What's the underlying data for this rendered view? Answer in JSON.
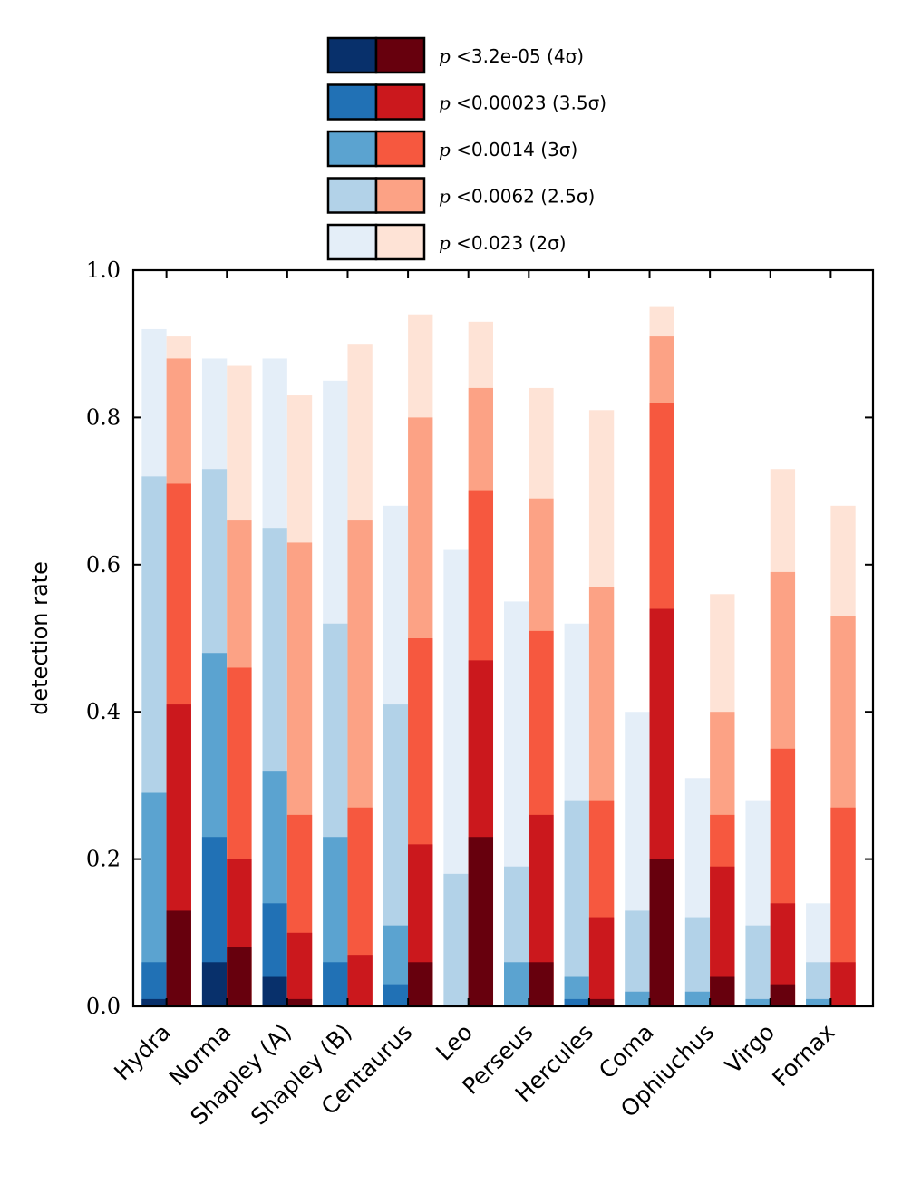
{
  "chart_data": {
    "type": "bar",
    "ylabel": "detection rate",
    "ylim": [
      0,
      1
    ],
    "yticks": [
      "0.0",
      "0.2",
      "0.4",
      "0.6",
      "0.8",
      "1.0"
    ],
    "categories": [
      "Hydra",
      "Norma",
      "Shapley (A)",
      "Shapley (B)",
      "Centaurus",
      "Leo",
      "Perseus",
      "Hercules",
      "Coma",
      "Ophiuchus",
      "Virgo",
      "Fornax"
    ],
    "legend": [
      {
        "p": "p",
        "label": "<3.2e-05 (4σ)",
        "blue": "#08306b",
        "red": "#67000d"
      },
      {
        "p": "p",
        "label": "<0.00023 (3.5σ)",
        "blue": "#2171b5",
        "red": "#cb181d"
      },
      {
        "p": "p",
        "label": "<0.0014 (3σ)",
        "blue": "#5ba3d0",
        "red": "#f6583f"
      },
      {
        "p": "p",
        "label": "<0.0062 (2.5σ)",
        "blue": "#b2d2e8",
        "red": "#fca285"
      },
      {
        "p": "p",
        "label": "<0.023 (2σ)",
        "blue": "#e4eef8",
        "red": "#fee3d6"
      }
    ],
    "series": [
      {
        "group": "blue",
        "levels": [
          "4σ",
          "3.5σ",
          "3σ",
          "2.5σ",
          "2σ"
        ],
        "values": [
          [
            0.01,
            0.06,
            0.29,
            0.72,
            0.92
          ],
          [
            0.06,
            0.23,
            0.48,
            0.73,
            0.88
          ],
          [
            0.04,
            0.14,
            0.32,
            0.65,
            0.88
          ],
          [
            0.0,
            0.06,
            0.23,
            0.52,
            0.85
          ],
          [
            0.0,
            0.03,
            0.11,
            0.41,
            0.68
          ],
          [
            0.0,
            0.0,
            0.0,
            0.18,
            0.62
          ],
          [
            0.0,
            0.0,
            0.06,
            0.19,
            0.55
          ],
          [
            0.0,
            0.01,
            0.04,
            0.28,
            0.52
          ],
          [
            0.0,
            0.0,
            0.02,
            0.13,
            0.4
          ],
          [
            0.0,
            0.0,
            0.02,
            0.12,
            0.31
          ],
          [
            0.0,
            0.0,
            0.01,
            0.11,
            0.28
          ],
          [
            0.0,
            0.0,
            0.01,
            0.06,
            0.14
          ]
        ]
      },
      {
        "group": "red",
        "levels": [
          "4σ",
          "3.5σ",
          "3σ",
          "2.5σ",
          "2σ"
        ],
        "values": [
          [
            0.13,
            0.41,
            0.71,
            0.88,
            0.91
          ],
          [
            0.08,
            0.2,
            0.46,
            0.66,
            0.87
          ],
          [
            0.01,
            0.1,
            0.26,
            0.63,
            0.83
          ],
          [
            0.0,
            0.07,
            0.27,
            0.66,
            0.9
          ],
          [
            0.06,
            0.22,
            0.5,
            0.8,
            0.94
          ],
          [
            0.23,
            0.47,
            0.7,
            0.84,
            0.93
          ],
          [
            0.06,
            0.26,
            0.51,
            0.69,
            0.84
          ],
          [
            0.01,
            0.12,
            0.28,
            0.57,
            0.81
          ],
          [
            0.2,
            0.54,
            0.82,
            0.91,
            0.95
          ],
          [
            0.04,
            0.19,
            0.26,
            0.4,
            0.56
          ],
          [
            0.03,
            0.14,
            0.35,
            0.59,
            0.73
          ],
          [
            0.0,
            0.06,
            0.27,
            0.53,
            0.68
          ]
        ]
      }
    ],
    "grid": false
  }
}
